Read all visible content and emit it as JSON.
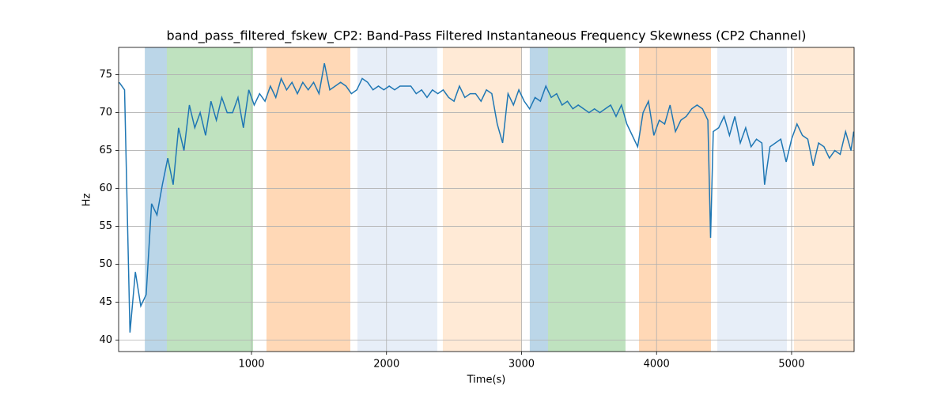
{
  "chart_data": {
    "type": "line",
    "title": "band_pass_filtered_fskew_CP2: Band-Pass Filtered Instantaneous Frequency Skewness (CP2 Channel)",
    "xlabel": "Time(s)",
    "ylabel": "Hz",
    "xlim": [
      16,
      5463
    ],
    "ylim": [
      38.5,
      78.6
    ],
    "xticks": [
      1000,
      2000,
      3000,
      4000,
      5000
    ],
    "yticks": [
      40,
      45,
      50,
      55,
      60,
      65,
      70,
      75
    ],
    "grid": true,
    "spans": [
      {
        "start": 210,
        "end": 373,
        "color": "#1f77b4"
      },
      {
        "start": 373,
        "end": 1012,
        "color": "#2ca02c"
      },
      {
        "start": 1111,
        "end": 1732,
        "color": "#ff7f0e"
      },
      {
        "start": 1785,
        "end": 2376,
        "color": "#aec7e8"
      },
      {
        "start": 2417,
        "end": 3003,
        "color": "#ffbb78"
      },
      {
        "start": 3061,
        "end": 3196,
        "color": "#1f77b4"
      },
      {
        "start": 3196,
        "end": 3770,
        "color": "#2ca02c"
      },
      {
        "start": 3870,
        "end": 4403,
        "color": "#ff7f0e"
      },
      {
        "start": 4450,
        "end": 4965,
        "color": "#aec7e8"
      },
      {
        "start": 5018,
        "end": 5463,
        "color": "#ffbb78"
      }
    ],
    "x": [
      20,
      60,
      100,
      140,
      180,
      220,
      260,
      300,
      340,
      380,
      420,
      460,
      500,
      540,
      580,
      620,
      660,
      700,
      740,
      780,
      820,
      860,
      900,
      940,
      980,
      1020,
      1060,
      1100,
      1140,
      1180,
      1220,
      1260,
      1300,
      1340,
      1380,
      1420,
      1460,
      1500,
      1540,
      1580,
      1620,
      1660,
      1700,
      1740,
      1780,
      1820,
      1860,
      1900,
      1940,
      1980,
      2020,
      2060,
      2100,
      2140,
      2180,
      2220,
      2260,
      2300,
      2340,
      2380,
      2420,
      2460,
      2500,
      2540,
      2580,
      2620,
      2660,
      2700,
      2740,
      2780,
      2820,
      2860,
      2900,
      2940,
      2980,
      3020,
      3060,
      3100,
      3140,
      3180,
      3220,
      3260,
      3300,
      3340,
      3380,
      3420,
      3460,
      3500,
      3540,
      3580,
      3620,
      3660,
      3700,
      3740,
      3780,
      3820,
      3860,
      3900,
      3940,
      3980,
      4020,
      4060,
      4100,
      4140,
      4180,
      4220,
      4260,
      4300,
      4340,
      4380,
      4400,
      4420,
      4460,
      4500,
      4540,
      4580,
      4620,
      4660,
      4700,
      4740,
      4780,
      4800,
      4840,
      4880,
      4920,
      4960,
      5000,
      5040,
      5080,
      5120,
      5160,
      5200,
      5240,
      5280,
      5320,
      5360,
      5400,
      5440,
      5460
    ],
    "series": [
      {
        "name": "band_pass_filtered_fskew_CP2",
        "color": "#1f77b4",
        "values": [
          74,
          73,
          41,
          49,
          44.5,
          46,
          58,
          56.5,
          60.5,
          64,
          60.5,
          68,
          65,
          71,
          68,
          70,
          67,
          71.5,
          69,
          72,
          70,
          70,
          72,
          68,
          73,
          71,
          72.5,
          71.5,
          73.5,
          72,
          74.5,
          73,
          74,
          72.5,
          74,
          73,
          74,
          72.5,
          76.5,
          73,
          73.5,
          74,
          73.5,
          72.5,
          73,
          74.5,
          74,
          73,
          73.5,
          73,
          73.5,
          73,
          73.5,
          73.5,
          73.5,
          72.5,
          73,
          72,
          73,
          72.5,
          73,
          72,
          71.5,
          73.5,
          72,
          72.5,
          72.5,
          71.5,
          73,
          72.5,
          68.5,
          66,
          72.5,
          71,
          73,
          71.5,
          70.5,
          72,
          71.5,
          73.5,
          72,
          72.5,
          71,
          71.5,
          70.5,
          71,
          70.5,
          70,
          70.5,
          70,
          70.5,
          71,
          69.5,
          71,
          68.5,
          67,
          65.5,
          70,
          71.5,
          67,
          69,
          68.5,
          71,
          67.5,
          69,
          69.5,
          70.5,
          71,
          70.5,
          69,
          53.5,
          67.5,
          68,
          69.5,
          67,
          69.5,
          66,
          68,
          65.5,
          66.5,
          66,
          60.5,
          65.5,
          66,
          66.5,
          63.5,
          66.5,
          68.5,
          67,
          66.5,
          63,
          66,
          65.5,
          64,
          65,
          64.5,
          67.5,
          65,
          67.5
        ]
      }
    ]
  }
}
